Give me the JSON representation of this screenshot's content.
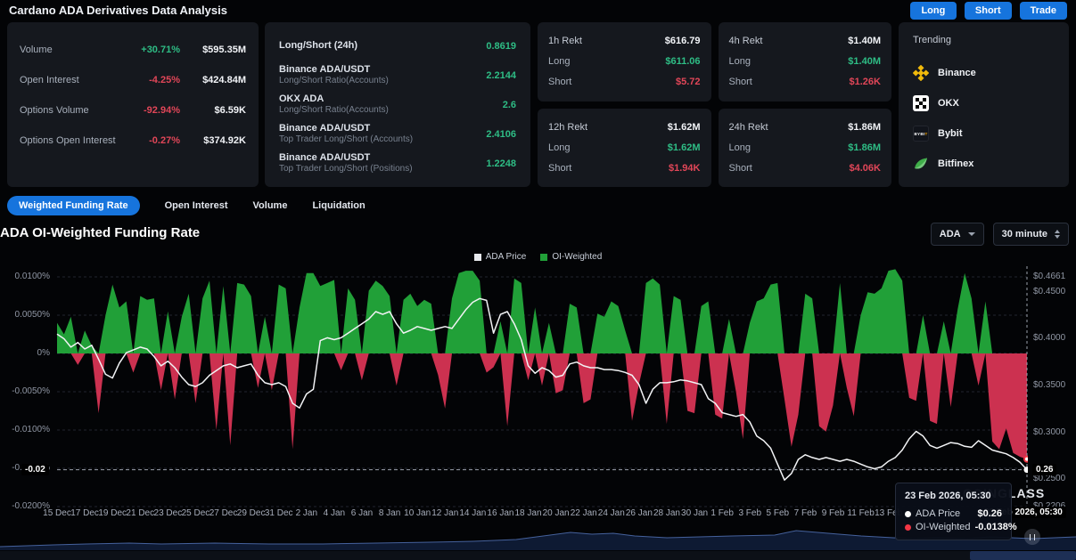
{
  "header": {
    "title": "Cardano ADA Derivatives Data Analysis",
    "actions": [
      "Long",
      "Short",
      "Trade"
    ]
  },
  "stats_panel": {
    "rows": [
      {
        "label": "Volume",
        "change": "+30.71%",
        "direction": "up",
        "value": "$595.35M"
      },
      {
        "label": "Open Interest",
        "change": "-4.25%",
        "direction": "down",
        "value": "$424.84M"
      },
      {
        "label": "Options Volume",
        "change": "-92.94%",
        "direction": "down",
        "value": "$6.59K"
      },
      {
        "label": "Options Open Interest",
        "change": "-0.27%",
        "direction": "down",
        "value": "$374.92K"
      }
    ]
  },
  "longshort_panel": {
    "rows": [
      {
        "title": "Long/Short (24h)",
        "subtitle": "",
        "value": "0.8619"
      },
      {
        "title": "Binance ADA/USDT",
        "subtitle": "Long/Short Ratio(Accounts)",
        "value": "2.2144"
      },
      {
        "title": "OKX ADA",
        "subtitle": "Long/Short Ratio(Accounts)",
        "value": "2.6"
      },
      {
        "title": "Binance ADA/USDT",
        "subtitle": "Top Trader Long/Short (Accounts)",
        "value": "2.4106"
      },
      {
        "title": "Binance ADA/USDT",
        "subtitle": "Top Trader Long/Short (Positions)",
        "value": "1.2248"
      }
    ]
  },
  "rekt_section": {
    "long_label": "Long",
    "short_label": "Short",
    "cards": [
      {
        "title": "1h Rekt",
        "total": "$616.79",
        "long_value": "$611.06",
        "short_value": "$5.72"
      },
      {
        "title": "4h Rekt",
        "total": "$1.40M",
        "long_value": "$1.40M",
        "short_value": "$1.26K"
      },
      {
        "title": "12h Rekt",
        "total": "$1.62M",
        "long_value": "$1.62M",
        "short_value": "$1.94K"
      },
      {
        "title": "24h Rekt",
        "total": "$1.86M",
        "long_value": "$1.86M",
        "short_value": "$4.06K"
      }
    ]
  },
  "trending_panel": {
    "title": "Trending",
    "exchanges": [
      "Binance",
      "OKX",
      "Bybit",
      "Bitfinex"
    ]
  },
  "tabs": [
    "Weighted Funding Rate",
    "Open Interest",
    "Volume",
    "Liquidation"
  ],
  "chart_header": {
    "title": "ADA OI-Weighted Funding Rate",
    "symbol": "ADA",
    "interval": "30 minute"
  },
  "chart": {
    "legend": [
      {
        "label": "ADA Price",
        "color": "#e8eaee"
      },
      {
        "label": "OI-Weighted",
        "color": "#21a038"
      }
    ],
    "left_axis": [
      "0.0100%",
      "0.0050%",
      "0%",
      "-0.0050%",
      "-0.0100%",
      "-0.0150%",
      "-0.0200%"
    ],
    "right_axis": [
      "$0.4661",
      "$0.4500",
      "$0.4000",
      "$0.3500",
      "$0.3000",
      "$0.2500",
      "$0.2206"
    ],
    "x_ticks": [
      "15 Dec",
      "17 Dec",
      "19 Dec",
      "21 Dec",
      "23 Dec",
      "25 Dec",
      "27 Dec",
      "29 Dec",
      "31 Dec",
      "2 Jan",
      "4 Jan",
      "6 Jan",
      "8 Jan",
      "10 Jan",
      "12 Jan",
      "14 Jan",
      "16 Jan",
      "18 Jan",
      "20 Jan",
      "22 Jan",
      "24 Jan",
      "26 Jan",
      "28 Jan",
      "30 Jan",
      "1 Feb",
      "3 Feb",
      "5 Feb",
      "7 Feb",
      "9 Feb",
      "11 Feb",
      "13 Feb"
    ],
    "watermark": "COINGLASS",
    "crosshair": {
      "left_badge": "-0.02",
      "right_badge": "0.26",
      "x_badge": "23 Feb 2026, 05:30"
    },
    "tooltip": {
      "time": "23 Feb 2026, 05:30",
      "rows": [
        {
          "label": "ADA Price",
          "value": "$0.26",
          "dot": "#ffffff"
        },
        {
          "label": "OI-Weighted",
          "value": "-0.0138%",
          "dot": "#f23645"
        }
      ]
    }
  },
  "chart_data": {
    "type": "area+line",
    "title": "ADA OI-Weighted Funding Rate",
    "x_unit": "12-hour steps",
    "x_range": [
      "15 Dec",
      "23 Feb 2026, 05:30"
    ],
    "left_axis_percent_range": [
      -0.02,
      0.01
    ],
    "right_axis_price_range": [
      0.2206,
      0.4661
    ],
    "legend_position": "top-center",
    "grid": "dashed-horizontal",
    "series": [
      {
        "name": "ADA Price",
        "axis": "right",
        "color": "#f2f3f5",
        "values": [
          0.405,
          0.4,
          0.391,
          0.396,
          0.389,
          0.393,
          0.378,
          0.362,
          0.358,
          0.374,
          0.385,
          0.388,
          0.391,
          0.389,
          0.381,
          0.371,
          0.376,
          0.369,
          0.359,
          0.351,
          0.349,
          0.353,
          0.361,
          0.366,
          0.371,
          0.373,
          0.369,
          0.371,
          0.373,
          0.361,
          0.353,
          0.351,
          0.353,
          0.349,
          0.331,
          0.326,
          0.341,
          0.346,
          0.398,
          0.401,
          0.399,
          0.401,
          0.406,
          0.411,
          0.416,
          0.421,
          0.429,
          0.426,
          0.429,
          0.416,
          0.406,
          0.409,
          0.413,
          0.411,
          0.409,
          0.411,
          0.413,
          0.411,
          0.421,
          0.431,
          0.439,
          0.443,
          0.441,
          0.406,
          0.426,
          0.429,
          0.416,
          0.399,
          0.371,
          0.363,
          0.369,
          0.366,
          0.359,
          0.361,
          0.373,
          0.375,
          0.371,
          0.369,
          0.369,
          0.367,
          0.367,
          0.366,
          0.364,
          0.361,
          0.351,
          0.331,
          0.346,
          0.353,
          0.353,
          0.354,
          0.356,
          0.355,
          0.353,
          0.351,
          0.336,
          0.331,
          0.321,
          0.319,
          0.317,
          0.319,
          0.311,
          0.296,
          0.291,
          0.283,
          0.266,
          0.249,
          0.256,
          0.271,
          0.276,
          0.273,
          0.271,
          0.273,
          0.271,
          0.269,
          0.271,
          0.269,
          0.266,
          0.263,
          0.261,
          0.263,
          0.269,
          0.273,
          0.281,
          0.293,
          0.301,
          0.296,
          0.286,
          0.283,
          0.286,
          0.289,
          0.288,
          0.285,
          0.284,
          0.291,
          0.286,
          0.281,
          0.279,
          0.277,
          0.273,
          0.268,
          0.26
        ]
      },
      {
        "name": "OI-Weighted",
        "axis": "left",
        "color_pos": "#21a038",
        "color_neg": "#cc3150",
        "values": [
          0.004,
          0.0025,
          0.0048,
          -0.0015,
          0.003,
          0.001,
          -0.0078,
          0.005,
          0.009,
          0.006,
          0.0068,
          -0.0025,
          0.0075,
          0.007,
          0.0072,
          -0.0048,
          0.0055,
          -0.006,
          0.0048,
          0.0078,
          -0.0065,
          0.0072,
          0.0095,
          -0.01,
          0.0088,
          -0.012,
          0.0092,
          0.009,
          0.0075,
          -0.0045,
          0.0048,
          -0.0048,
          0.009,
          0.0085,
          -0.0125,
          0.006,
          0.0105,
          0.0105,
          0.0088,
          0.0092,
          0.0096,
          -0.0022,
          0.0085,
          0.007,
          -0.0035,
          0.0082,
          0.0095,
          0.0088,
          0.0075,
          -0.0042,
          0.007,
          0.0078,
          0.0062,
          0.007,
          0.0065,
          -0.0028,
          -0.0072,
          0.0072,
          0.0105,
          0.0108,
          0.0108,
          0.0095,
          -0.0025,
          -0.0018,
          0.0042,
          -0.0095,
          0.0098,
          0.0092,
          -0.0035,
          0.006,
          -0.0042,
          0.004,
          -0.0052,
          -0.0048,
          0.0065,
          0.006,
          -0.0065,
          -0.006,
          0.0052,
          0.0048,
          0.0068,
          0.0062,
          0.003,
          -0.0088,
          -0.004,
          0.0092,
          0.0098,
          0.009,
          -0.0092,
          0.0075,
          0.007,
          -0.0075,
          -0.0078,
          0.0062,
          0.0068,
          -0.008,
          -0.0085,
          0.0045,
          -0.005,
          -0.0112,
          0.004,
          0.0068,
          0.0072,
          0.009,
          0.0092,
          -0.006,
          -0.0122,
          -0.008,
          0.0078,
          0.0072,
          -0.0095,
          -0.0102,
          -0.0068,
          0.0092,
          -0.0045,
          -0.0082,
          0.005,
          0.008,
          0.0078,
          0.0085,
          0.0108,
          0.011,
          0.0095,
          -0.0058,
          -0.0062,
          0.005,
          -0.0088,
          -0.0092,
          0.0042,
          -0.007,
          0.0058,
          0.0105,
          0.0072,
          -0.0042,
          0.0068,
          -0.0115,
          -0.0125,
          -0.0098,
          -0.013,
          -0.0135,
          -0.0138
        ]
      }
    ],
    "navigator_profile": [
      [
        0.0,
        4
      ],
      [
        0.05,
        6
      ],
      [
        0.08,
        7
      ],
      [
        0.12,
        8
      ],
      [
        0.15,
        7
      ],
      [
        0.2,
        8
      ],
      [
        0.25,
        7
      ],
      [
        0.3,
        7
      ],
      [
        0.35,
        8
      ],
      [
        0.4,
        9
      ],
      [
        0.44,
        10
      ],
      [
        0.48,
        12
      ],
      [
        0.53,
        20
      ],
      [
        0.55,
        18
      ],
      [
        0.57,
        19
      ],
      [
        0.59,
        16
      ],
      [
        0.62,
        14
      ],
      [
        0.65,
        15
      ],
      [
        0.68,
        16
      ],
      [
        0.72,
        17
      ],
      [
        0.74,
        22
      ],
      [
        0.76,
        20
      ],
      [
        0.78,
        18
      ],
      [
        0.8,
        16
      ],
      [
        0.83,
        14
      ],
      [
        0.85,
        13
      ],
      [
        0.87,
        14
      ],
      [
        0.9,
        13
      ],
      [
        0.92,
        15
      ],
      [
        0.94,
        14
      ],
      [
        0.96,
        13
      ],
      [
        0.98,
        14
      ],
      [
        1.0,
        15
      ]
    ]
  },
  "colors": {
    "accent": "#1674dd",
    "green": "#21a038",
    "red": "#cc3150",
    "text_green": "#2ebd85",
    "text_red": "#e14658"
  }
}
